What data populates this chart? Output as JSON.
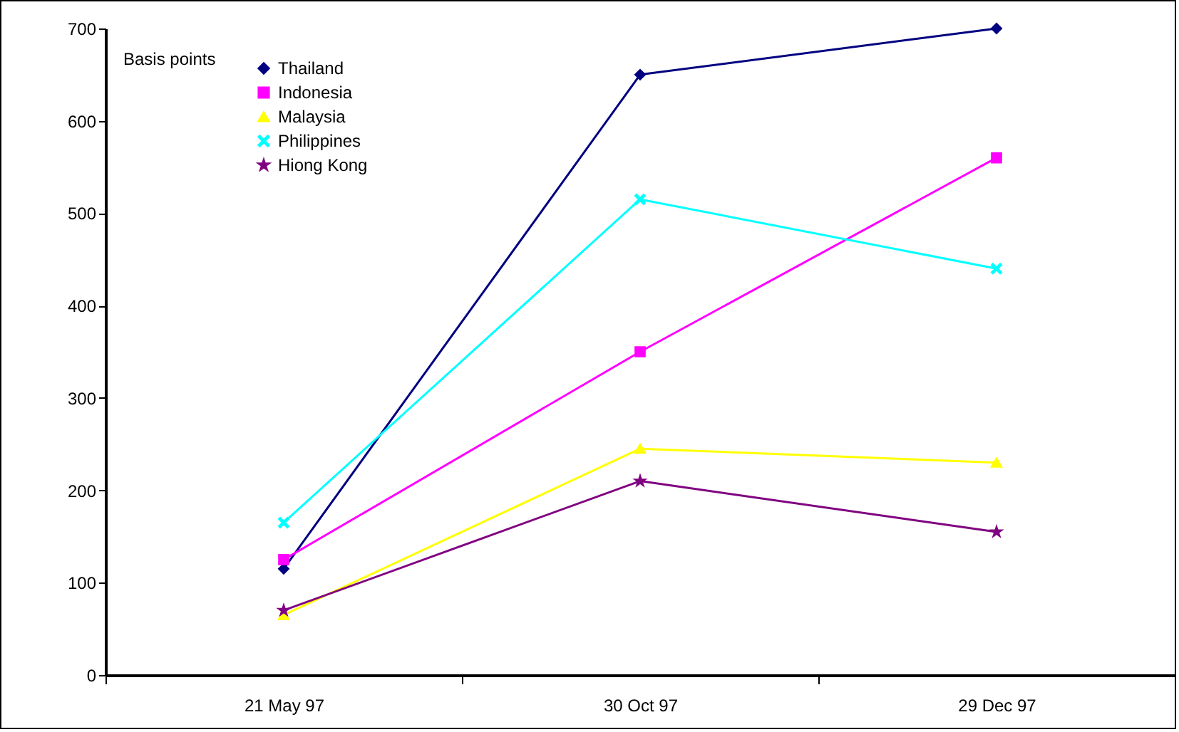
{
  "chart_data": {
    "type": "line",
    "ylabel": "Basis points",
    "categories": [
      "21 May 97",
      "30 Oct 97",
      "29 Dec 97"
    ],
    "series": [
      {
        "name": "Thailand",
        "color": "#000080",
        "marker": "diamond",
        "values": [
          115,
          650,
          700
        ]
      },
      {
        "name": "Indonesia",
        "color": "#ff00ff",
        "marker": "square",
        "values": [
          125,
          350,
          560
        ]
      },
      {
        "name": "Malaysia",
        "color": "#ffff00",
        "marker": "triangle",
        "values": [
          65,
          245,
          230
        ]
      },
      {
        "name": "Philippines",
        "color": "#00ffff",
        "marker": "cross",
        "values": [
          165,
          515,
          440
        ]
      },
      {
        "name": "Hiong Kong",
        "color": "#800080",
        "marker": "star",
        "values": [
          70,
          210,
          155
        ]
      }
    ],
    "ylim": [
      0,
      700
    ],
    "yticks": [
      0,
      100,
      200,
      300,
      400,
      500,
      600,
      700
    ],
    "grid": false,
    "legend": "top left"
  }
}
